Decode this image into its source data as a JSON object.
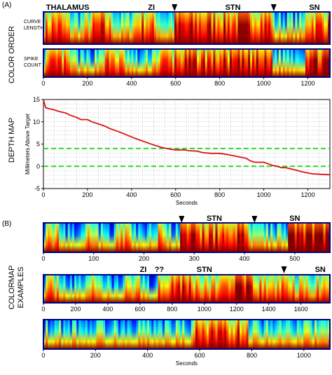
{
  "panel_a": {
    "letter": "(A)",
    "side_color_order": "COLOR ORDER",
    "side_depth_map": "DEPTH MAP",
    "regions": [
      {
        "label": "THALAMUS",
        "x": 110
      },
      {
        "label": "ZI",
        "x": 490
      },
      {
        "label": "STN",
        "x": 860
      },
      {
        "label": "SN",
        "x": 1230
      }
    ],
    "arrow_times": [
      595,
      1045
    ],
    "row1_label": [
      "CURVE",
      "LENGTH"
    ],
    "row2_label": [
      "SPIKE",
      "COUNT"
    ]
  },
  "panel_b": {
    "letter": "(B)",
    "side_label": [
      "COLORMAP",
      "EXAMPLES"
    ],
    "strip1": {
      "regions": [
        {
          "label": "STN",
          "x": 340
        },
        {
          "label": "SN",
          "x": 500
        }
      ],
      "arrow_times": [
        275,
        420
      ]
    },
    "strip2": {
      "regions": [
        {
          "label": "ZI",
          "x": 620
        },
        {
          "label": "??",
          "x": 720
        },
        {
          "label": "STN",
          "x": 1000
        },
        {
          "label": "SN",
          "x": 1720
        }
      ],
      "arrow_times": [
        1495
      ]
    },
    "x_axis_label": "Seconds"
  },
  "colors": {
    "trace": "#dd1111",
    "target_lines": "#22dd22",
    "grid": "#999999",
    "frame": "#000080"
  },
  "chart_data": [
    {
      "type": "heatmap",
      "title": "",
      "rows": [
        "CURVE LENGTH",
        "SPIKE COUNT"
      ],
      "xlabel": "",
      "xlim": [
        0,
        1300
      ],
      "xticks": [
        0,
        200,
        400,
        600,
        800,
        1000,
        1200
      ],
      "colormap": "jet"
    },
    {
      "type": "line",
      "title": "",
      "xlabel": "Seconds",
      "ylabel": "Millimeters Above Target",
      "xlim": [
        0,
        1300
      ],
      "ylim": [
        -5,
        15
      ],
      "xticks": [
        0,
        200,
        400,
        600,
        800,
        1000,
        1200
      ],
      "yticks": [
        -5,
        0,
        5,
        10,
        15
      ],
      "grid": true,
      "reference_lines_y": [
        4,
        0
      ],
      "series": [
        {
          "x": [
            0,
            5,
            10,
            20,
            40,
            60,
            80,
            100,
            120,
            150,
            170,
            200,
            220,
            250,
            280,
            300,
            340,
            380,
            420,
            460,
            500,
            540,
            580,
            600,
            640,
            660,
            700,
            720,
            760,
            800,
            840,
            880,
            920,
            940,
            960,
            980,
            1000,
            1040,
            1060,
            1080,
            1100,
            1140,
            1180,
            1220,
            1260,
            1300
          ],
          "y": [
            15,
            14,
            13.2,
            13,
            12.8,
            12.5,
            12.2,
            12,
            11.5,
            11,
            10.5,
            10.5,
            10,
            9.5,
            9,
            8.5,
            7.8,
            7,
            6.2,
            5.5,
            4.8,
            4.2,
            3.8,
            3.7,
            3.7,
            3.5,
            3.4,
            3.1,
            2.9,
            2.9,
            2.6,
            2.2,
            1.8,
            1.2,
            0.9,
            0.9,
            0.9,
            0.2,
            0,
            -0.3,
            -0.3,
            -0.8,
            -1.3,
            -1.7,
            -1.8,
            -1.9
          ]
        }
      ]
    },
    {
      "type": "heatmap",
      "title": "",
      "xlim": [
        0,
        570
      ],
      "xticks": [
        0,
        100,
        200,
        300,
        400,
        500
      ],
      "colormap": "jet"
    },
    {
      "type": "heatmap",
      "title": "",
      "xlim": [
        0,
        1780
      ],
      "xticks": [
        0,
        200,
        400,
        600,
        800,
        1000,
        1200,
        1400,
        1600
      ],
      "colormap": "jet"
    },
    {
      "type": "heatmap",
      "title": "",
      "xlabel": "Seconds",
      "xlim": [
        0,
        1100
      ],
      "xticks": [
        0,
        200,
        400,
        600,
        800,
        1000
      ],
      "colormap": "jet"
    }
  ]
}
